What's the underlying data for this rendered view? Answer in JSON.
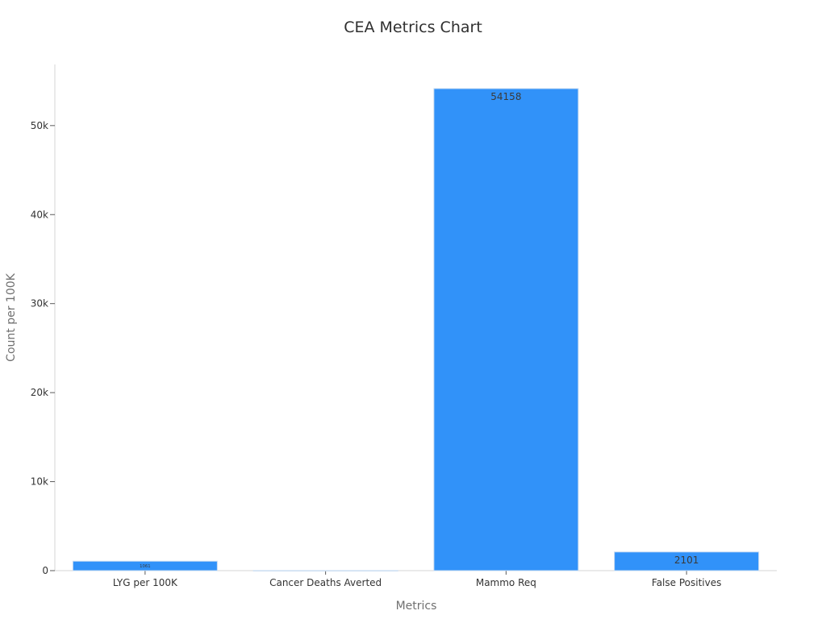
{
  "chart_data": {
    "type": "bar",
    "title": "CEA Metrics Chart",
    "xlabel": "Metrics",
    "ylabel": "Count per 100K",
    "categories": [
      "LYG per 100K",
      "Cancer Deaths Averted",
      "Mammo Req",
      "False Positives"
    ],
    "values": [
      1061,
      8,
      54158,
      2101
    ],
    "data_labels": [
      "1061",
      "",
      "54158",
      "2101"
    ],
    "ylim": [
      0,
      56866
    ],
    "yticks": [
      0,
      10000,
      20000,
      30000,
      40000,
      50000
    ],
    "ytick_labels": [
      "0",
      "10k",
      "20k",
      "30k",
      "40k",
      "50k"
    ],
    "grid": false,
    "colors": {
      "bar": "#3192f9",
      "bar_edge": "#c9dcf1",
      "axis": "#d4d4d4",
      "tick": "#5a5a5a"
    }
  }
}
